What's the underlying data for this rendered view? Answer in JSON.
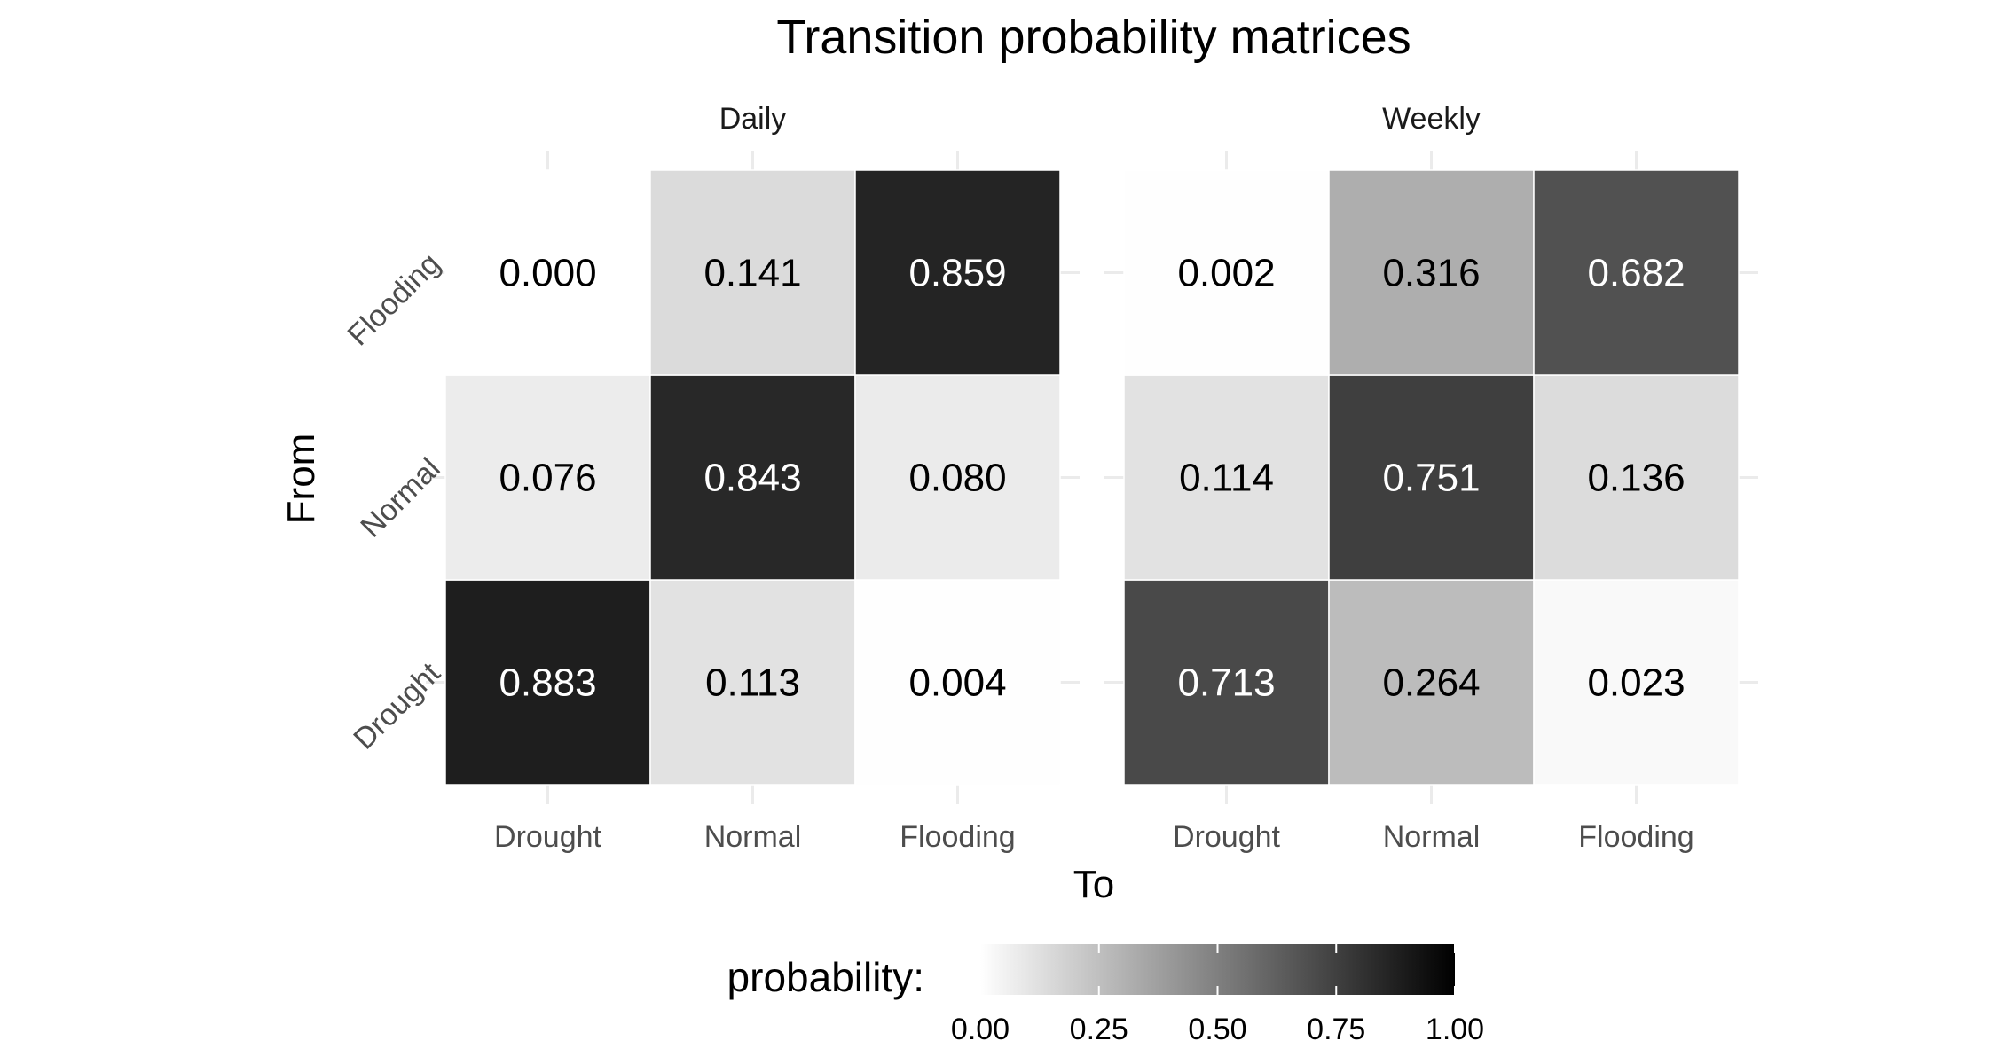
{
  "chart_data": {
    "type": "heatmap",
    "title": "Transition probability matrices",
    "xlabel": "To",
    "ylabel": "From",
    "x_categories": [
      "Drought",
      "Normal",
      "Flooding"
    ],
    "y_categories": [
      "Drought",
      "Normal",
      "Flooding"
    ],
    "panels": [
      {
        "name": "Daily",
        "rows": [
          {
            "from": "Drought",
            "values": [
              0.883,
              0.113,
              0.004
            ]
          },
          {
            "from": "Normal",
            "values": [
              0.076,
              0.843,
              0.08
            ]
          },
          {
            "from": "Flooding",
            "values": [
              0.0,
              0.141,
              0.859
            ]
          }
        ]
      },
      {
        "name": "Weekly",
        "rows": [
          {
            "from": "Drought",
            "values": [
              0.713,
              0.264,
              0.023
            ]
          },
          {
            "from": "Normal",
            "values": [
              0.114,
              0.751,
              0.136
            ]
          },
          {
            "from": "Flooding",
            "values": [
              0.002,
              0.316,
              0.682
            ]
          }
        ]
      }
    ],
    "legend": {
      "title": "probability:",
      "position": "bottom",
      "range": [
        0,
        1
      ],
      "ticks": [
        "0.00",
        "0.25",
        "0.50",
        "0.75",
        "1.00"
      ],
      "low_color": "#ffffff",
      "high_color": "#000000"
    },
    "grid": true
  }
}
